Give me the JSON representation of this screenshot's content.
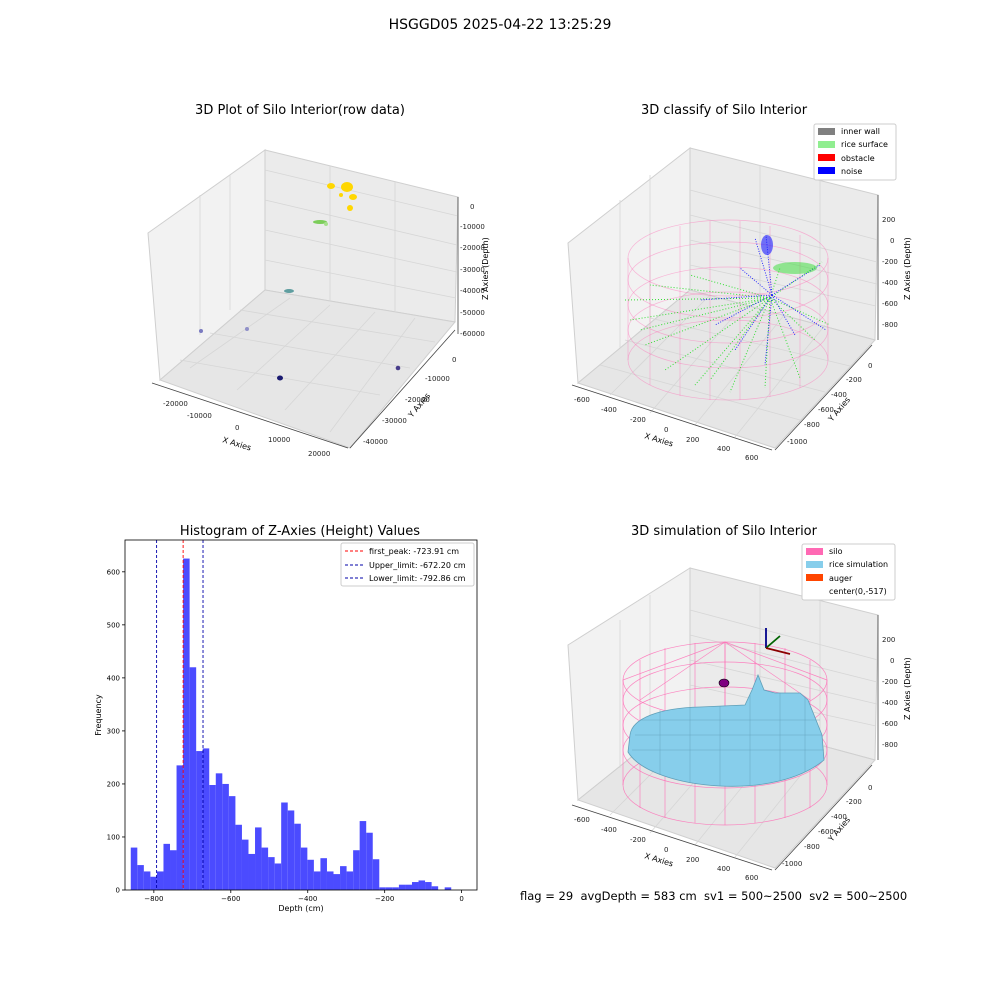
{
  "figure_title": "HSGGD05 2025-04-22 13:25:29",
  "footer_text": "flag = 29  avgDepth = 583 cm  sv1 = 500~2500  sv2 = 500~2500",
  "colors": {
    "histogram_bar": "#4b4bff",
    "first_peak_line": "#ff0000",
    "limit_line": "#0000aa",
    "inner_wall": "#808080",
    "rice_surface": "#90ee90",
    "obstacle": "#ff0000",
    "noise": "#0000ff",
    "silo": "#ff69b4",
    "rice_simulation": "#87ceeb",
    "auger": "#ff4500"
  },
  "chart_data": [
    {
      "type": "scatter",
      "panel": "3d",
      "title": "3D Plot of Silo Interior(row data)",
      "xlabel": "X Axies",
      "ylabel": "Y Axies",
      "zlabel": "Z Axies (Depth)",
      "x_ticks": [
        "-20000",
        "-10000",
        "0",
        "10000",
        "20000"
      ],
      "y_ticks": [
        "0",
        "-10000",
        "-20000",
        "-30000",
        "-40000"
      ],
      "z_ticks": [
        "0",
        "-10000",
        "-20000",
        "-30000",
        "-40000",
        "-50000",
        "-60000"
      ],
      "points": [
        {
          "x": -2000,
          "y": -1500,
          "z": -800,
          "color": "#ffd700"
        },
        {
          "x": 500,
          "y": -2000,
          "z": -1500,
          "color": "#ffd700"
        },
        {
          "x": 2000,
          "y": -1000,
          "z": -3000,
          "color": "#ffd700"
        },
        {
          "x": -1000,
          "y": -3000,
          "z": -12000,
          "color": "#7ccd5a"
        },
        {
          "x": 1000,
          "y": -2500,
          "z": -12500,
          "color": "#7ccd5a"
        },
        {
          "x": 0,
          "y": -5000,
          "z": -35000,
          "color": "#5f9ea0"
        },
        {
          "x": -22000,
          "y": -5000,
          "z": -60000,
          "color": "#6a5acd"
        },
        {
          "x": -15000,
          "y": -2000,
          "z": -55000,
          "color": "#8a8ad0"
        },
        {
          "x": -3000,
          "y": -20000,
          "z": -62000,
          "color": "#191970"
        },
        {
          "x": 20000,
          "y": -25000,
          "z": -50000,
          "color": "#483d8b"
        }
      ]
    },
    {
      "type": "scatter",
      "panel": "3d",
      "title": "3D classify of Silo Interior",
      "xlabel": "X Axies",
      "ylabel": "Y Axies",
      "zlabel": "Z Axies (Depth)",
      "x_ticks": [
        "-600",
        "-400",
        "-200",
        "0",
        "200",
        "400",
        "600"
      ],
      "y_ticks": [
        "0",
        "-200",
        "-400",
        "-600",
        "-800",
        "-1000"
      ],
      "z_ticks": [
        "200",
        "0",
        "-200",
        "-400",
        "-600",
        "-800"
      ],
      "legend": [
        "inner wall",
        "rice surface",
        "obstacle",
        "noise"
      ],
      "legend_position": "top-right"
    },
    {
      "type": "bar",
      "title": "Histogram of Z-Axies (Height) Values",
      "xlabel": "Depth (cm)",
      "ylabel": "Frequency",
      "xlim": [
        -875,
        40
      ],
      "ylim": [
        0,
        660
      ],
      "x_ticks": [
        -800,
        -600,
        -400,
        -200,
        0
      ],
      "y_ticks": [
        0,
        100,
        200,
        300,
        400,
        500,
        600
      ],
      "bin_start": -860,
      "bin_width": 17,
      "values": [
        80,
        47,
        35,
        25,
        35,
        87,
        75,
        235,
        625,
        420,
        262,
        267,
        198,
        220,
        200,
        177,
        123,
        95,
        68,
        118,
        80,
        62,
        50,
        165,
        150,
        125,
        80,
        57,
        35,
        60,
        35,
        30,
        45,
        35,
        75,
        130,
        108,
        58,
        5,
        5,
        5,
        10,
        10,
        15,
        18,
        15,
        7,
        0,
        5
      ],
      "vlines": [
        {
          "x": -723.91,
          "label": "first_peak: -723.91 cm",
          "color": "#ff0000"
        },
        {
          "x": -672.2,
          "label": "Upper_limit: -672.20 cm",
          "color": "#0000aa"
        },
        {
          "x": -792.86,
          "label": "Lower_limit: -792.86 cm",
          "color": "#0000aa"
        }
      ],
      "legend_position": "top-right"
    },
    {
      "type": "area",
      "panel": "3d",
      "title": "3D simulation of Silo Interior",
      "xlabel": "X Axies",
      "ylabel": "Y Axies",
      "zlabel": "Z Axies (Depth)",
      "x_ticks": [
        "-600",
        "-400",
        "-200",
        "0",
        "200",
        "400",
        "600"
      ],
      "y_ticks": [
        "0",
        "-200",
        "-400",
        "-600",
        "-800",
        "-1000"
      ],
      "z_ticks": [
        "200",
        "0",
        "-200",
        "-400",
        "-600",
        "-800"
      ],
      "legend": [
        "silo",
        "rice simulation",
        "auger",
        "center(0,-517)"
      ],
      "legend_position": "top-right"
    }
  ]
}
